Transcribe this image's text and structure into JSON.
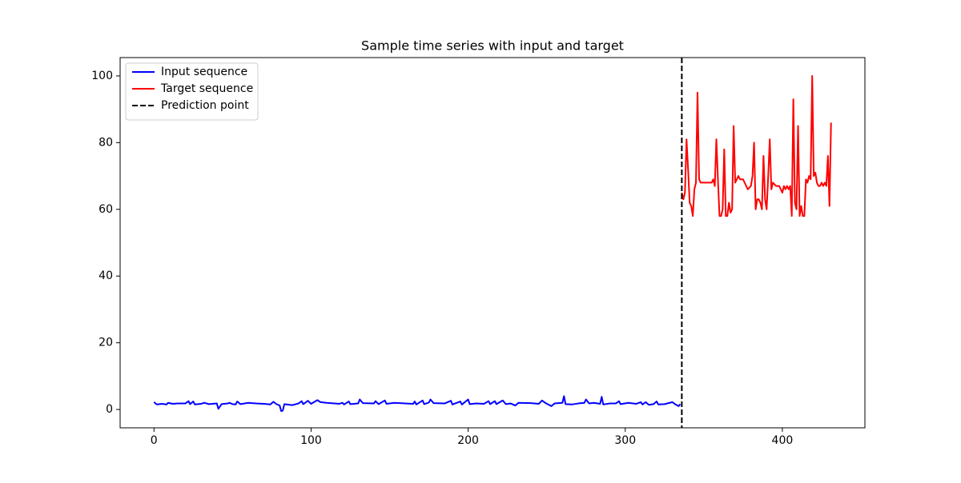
{
  "chart_data": {
    "type": "line",
    "title": "Sample time series with input and target",
    "xlim": [
      -21.55,
      452.55
    ],
    "ylim": [
      -5.5,
      105.5
    ],
    "xticks": [
      0,
      100,
      200,
      300,
      400
    ],
    "yticks": [
      0,
      20,
      40,
      60,
      80,
      100
    ],
    "grid": false,
    "legend": "upper left",
    "series": [
      {
        "name": "Input sequence",
        "color": "#0000ff",
        "x": [
          0,
          1,
          2,
          5,
          8,
          9,
          12,
          15,
          20,
          22,
          23,
          25,
          26,
          30,
          32,
          35,
          40,
          41,
          43,
          47,
          48,
          50,
          52,
          53,
          55,
          60,
          65,
          70,
          74,
          76,
          78,
          80,
          81,
          82,
          83,
          88,
          92,
          94,
          95,
          98,
          100,
          104,
          106,
          110,
          118,
          120,
          121,
          124,
          125,
          130,
          131,
          133,
          140,
          141,
          143,
          147,
          148,
          153,
          160,
          165,
          166,
          167,
          171,
          172,
          175,
          176,
          178,
          185,
          189,
          190,
          195,
          196,
          200,
          201,
          205,
          210,
          213,
          214,
          217,
          218,
          222,
          224,
          227,
          230,
          232,
          240,
          245,
          247,
          249,
          253,
          255,
          260,
          261,
          262,
          266,
          270,
          274,
          275,
          277,
          280,
          284,
          285,
          286,
          290,
          294,
          296,
          297,
          302,
          307,
          310,
          311,
          313,
          315,
          318,
          320,
          321,
          325,
          330,
          332,
          334,
          335
        ],
        "values": [
          2.2,
          1.8,
          1.5,
          1.7,
          1.5,
          2.0,
          1.7,
          1.8,
          1.8,
          2.5,
          1.6,
          2.4,
          1.5,
          1.7,
          2.0,
          1.6,
          1.8,
          0.2,
          1.6,
          1.8,
          2.0,
          1.6,
          1.5,
          2.4,
          1.6,
          2.0,
          1.8,
          1.7,
          1.5,
          2.3,
          1.6,
          1.2,
          -0.5,
          -0.3,
          1.6,
          1.3,
          1.8,
          2.5,
          1.6,
          2.6,
          1.7,
          2.8,
          2.2,
          2.0,
          1.7,
          2.0,
          1.5,
          2.4,
          1.6,
          1.8,
          3.0,
          1.9,
          1.8,
          2.5,
          1.6,
          2.7,
          1.7,
          2.0,
          1.8,
          1.7,
          2.4,
          1.5,
          2.7,
          1.6,
          2.1,
          3.0,
          1.9,
          1.8,
          2.6,
          1.5,
          2.4,
          1.5,
          3.0,
          1.6,
          1.8,
          1.7,
          2.5,
          1.6,
          2.5,
          1.6,
          2.7,
          1.6,
          1.8,
          1.2,
          2.0,
          1.9,
          1.7,
          2.7,
          2.0,
          1.0,
          1.8,
          2.0,
          4.0,
          1.6,
          1.5,
          1.8,
          2.0,
          3.0,
          1.8,
          2.0,
          1.7,
          3.8,
          1.5,
          1.8,
          1.8,
          2.5,
          1.6,
          2.0,
          1.7,
          2.2,
          1.5,
          2.2,
          1.4,
          1.6,
          2.4,
          1.5,
          1.6,
          2.2,
          1.5,
          1.0,
          1.6
        ]
      },
      {
        "name": "Target sequence",
        "color": "#ff0000",
        "x": [
          336,
          337,
          338,
          339,
          340,
          341,
          342,
          343,
          344,
          345,
          346,
          347,
          348,
          350,
          353,
          355,
          356,
          357,
          358,
          359,
          360,
          361,
          362,
          363,
          364,
          365,
          366,
          367,
          368,
          369,
          370,
          371,
          372,
          373,
          375,
          377,
          378,
          380,
          381,
          382,
          383,
          384,
          385,
          386,
          387,
          388,
          389,
          390,
          391,
          392,
          393,
          394,
          396,
          398,
          399,
          400,
          401,
          402,
          403,
          404,
          405,
          406,
          407,
          408,
          409,
          410,
          411,
          412,
          413,
          414,
          415,
          416,
          417,
          418,
          419,
          420,
          421,
          422,
          423,
          424,
          425,
          426,
          427,
          428,
          429,
          430,
          431
        ],
        "values": [
          65,
          63,
          65,
          81,
          72,
          62,
          61,
          58,
          66,
          68,
          95,
          69,
          68,
          68,
          68,
          68,
          69,
          67,
          81,
          69,
          58,
          58,
          60,
          78,
          58,
          58,
          62,
          59,
          60,
          85,
          68,
          69,
          70,
          69,
          69,
          67,
          66,
          67,
          70,
          80,
          60,
          63,
          63,
          62,
          60,
          76,
          63,
          60,
          70,
          81,
          66,
          68,
          67,
          67,
          66,
          65,
          67,
          66,
          67,
          66,
          67,
          58,
          93,
          62,
          60,
          85,
          58,
          61,
          58,
          58,
          69,
          68,
          70,
          69,
          100,
          70,
          71,
          68,
          67,
          67,
          68,
          67,
          68,
          67,
          76,
          61,
          86
        ]
      },
      {
        "name": "Prediction point",
        "color": "#000000",
        "dashed": true,
        "x": [
          336
        ]
      }
    ]
  }
}
